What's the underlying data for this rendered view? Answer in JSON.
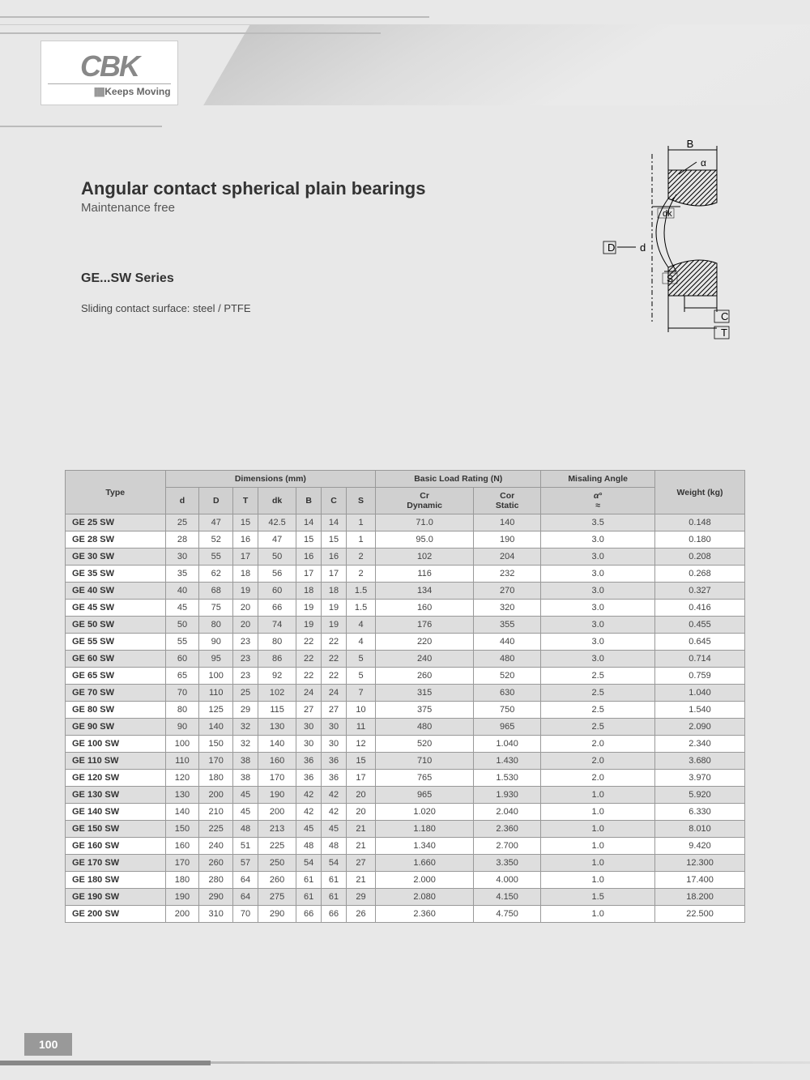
{
  "logo": {
    "brand": "CBK",
    "tagline": "Keeps Moving"
  },
  "heading": {
    "title": "Angular contact spherical plain bearings",
    "subtitle": "Maintenance free",
    "series": "GE...SW Series",
    "surface": "Sliding contact surface: steel / PTFE"
  },
  "diagram": {
    "labels": {
      "B": "B",
      "alpha": "α",
      "dk": "dk",
      "D": "D",
      "d": "d",
      "S": "S",
      "C": "C",
      "T": "T"
    },
    "colors": {
      "stroke": "#000000",
      "hatch": "#000000",
      "bg": "#e8e8e8"
    }
  },
  "table": {
    "group_headers": {
      "type": "Type",
      "dimensions": "Dimensions (mm)",
      "load": "Basic Load Rating (N)",
      "misaling": "Misaling Angle",
      "weight": "Weight (kg)"
    },
    "sub_headers": [
      "d",
      "D",
      "T",
      "dk",
      "B",
      "C",
      "S",
      "Cr Dynamic",
      "Cor Static",
      "α° ≈",
      ""
    ],
    "rows": [
      [
        "GE 25 SW",
        "25",
        "47",
        "15",
        "42.5",
        "14",
        "14",
        "1",
        "71.0",
        "140",
        "3.5",
        "0.148"
      ],
      [
        "GE 28 SW",
        "28",
        "52",
        "16",
        "47",
        "15",
        "15",
        "1",
        "95.0",
        "190",
        "3.0",
        "0.180"
      ],
      [
        "GE 30 SW",
        "30",
        "55",
        "17",
        "50",
        "16",
        "16",
        "2",
        "102",
        "204",
        "3.0",
        "0.208"
      ],
      [
        "GE 35 SW",
        "35",
        "62",
        "18",
        "56",
        "17",
        "17",
        "2",
        "116",
        "232",
        "3.0",
        "0.268"
      ],
      [
        "GE 40 SW",
        "40",
        "68",
        "19",
        "60",
        "18",
        "18",
        "1.5",
        "134",
        "270",
        "3.0",
        "0.327"
      ],
      [
        "GE 45 SW",
        "45",
        "75",
        "20",
        "66",
        "19",
        "19",
        "1.5",
        "160",
        "320",
        "3.0",
        "0.416"
      ],
      [
        "GE 50 SW",
        "50",
        "80",
        "20",
        "74",
        "19",
        "19",
        "4",
        "176",
        "355",
        "3.0",
        "0.455"
      ],
      [
        "GE 55 SW",
        "55",
        "90",
        "23",
        "80",
        "22",
        "22",
        "4",
        "220",
        "440",
        "3.0",
        "0.645"
      ],
      [
        "GE 60 SW",
        "60",
        "95",
        "23",
        "86",
        "22",
        "22",
        "5",
        "240",
        "480",
        "3.0",
        "0.714"
      ],
      [
        "GE 65 SW",
        "65",
        "100",
        "23",
        "92",
        "22",
        "22",
        "5",
        "260",
        "520",
        "2.5",
        "0.759"
      ],
      [
        "GE 70 SW",
        "70",
        "110",
        "25",
        "102",
        "24",
        "24",
        "7",
        "315",
        "630",
        "2.5",
        "1.040"
      ],
      [
        "GE 80 SW",
        "80",
        "125",
        "29",
        "115",
        "27",
        "27",
        "10",
        "375",
        "750",
        "2.5",
        "1.540"
      ],
      [
        "GE 90 SW",
        "90",
        "140",
        "32",
        "130",
        "30",
        "30",
        "11",
        "480",
        "965",
        "2.5",
        "2.090"
      ],
      [
        "GE 100 SW",
        "100",
        "150",
        "32",
        "140",
        "30",
        "30",
        "12",
        "520",
        "1.040",
        "2.0",
        "2.340"
      ],
      [
        "GE 110 SW",
        "110",
        "170",
        "38",
        "160",
        "36",
        "36",
        "15",
        "710",
        "1.430",
        "2.0",
        "3.680"
      ],
      [
        "GE 120 SW",
        "120",
        "180",
        "38",
        "170",
        "36",
        "36",
        "17",
        "765",
        "1.530",
        "2.0",
        "3.970"
      ],
      [
        "GE 130 SW",
        "130",
        "200",
        "45",
        "190",
        "42",
        "42",
        "20",
        "965",
        "1.930",
        "1.0",
        "5.920"
      ],
      [
        "GE 140 SW",
        "140",
        "210",
        "45",
        "200",
        "42",
        "42",
        "20",
        "1.020",
        "2.040",
        "1.0",
        "6.330"
      ],
      [
        "GE 150 SW",
        "150",
        "225",
        "48",
        "213",
        "45",
        "45",
        "21",
        "1.180",
        "2.360",
        "1.0",
        "8.010"
      ],
      [
        "GE 160 SW",
        "160",
        "240",
        "51",
        "225",
        "48",
        "48",
        "21",
        "1.340",
        "2.700",
        "1.0",
        "9.420"
      ],
      [
        "GE 170 SW",
        "170",
        "260",
        "57",
        "250",
        "54",
        "54",
        "27",
        "1.660",
        "3.350",
        "1.0",
        "12.300"
      ],
      [
        "GE 180 SW",
        "180",
        "280",
        "64",
        "260",
        "61",
        "61",
        "21",
        "2.000",
        "4.000",
        "1.0",
        "17.400"
      ],
      [
        "GE 190 SW",
        "190",
        "290",
        "64",
        "275",
        "61",
        "61",
        "29",
        "2.080",
        "4.150",
        "1.5",
        "18.200"
      ],
      [
        "GE 200 SW",
        "200",
        "310",
        "70",
        "290",
        "66",
        "66",
        "26",
        "2.360",
        "4.750",
        "1.0",
        "22.500"
      ]
    ],
    "col_widths_pct": [
      11,
      6,
      6,
      6,
      6,
      6,
      6,
      6,
      10,
      10,
      9,
      9
    ],
    "header_bg": "#d0d0d0",
    "row_odd_bg": "#dedede",
    "row_even_bg": "#ffffff"
  },
  "page_number": "100"
}
